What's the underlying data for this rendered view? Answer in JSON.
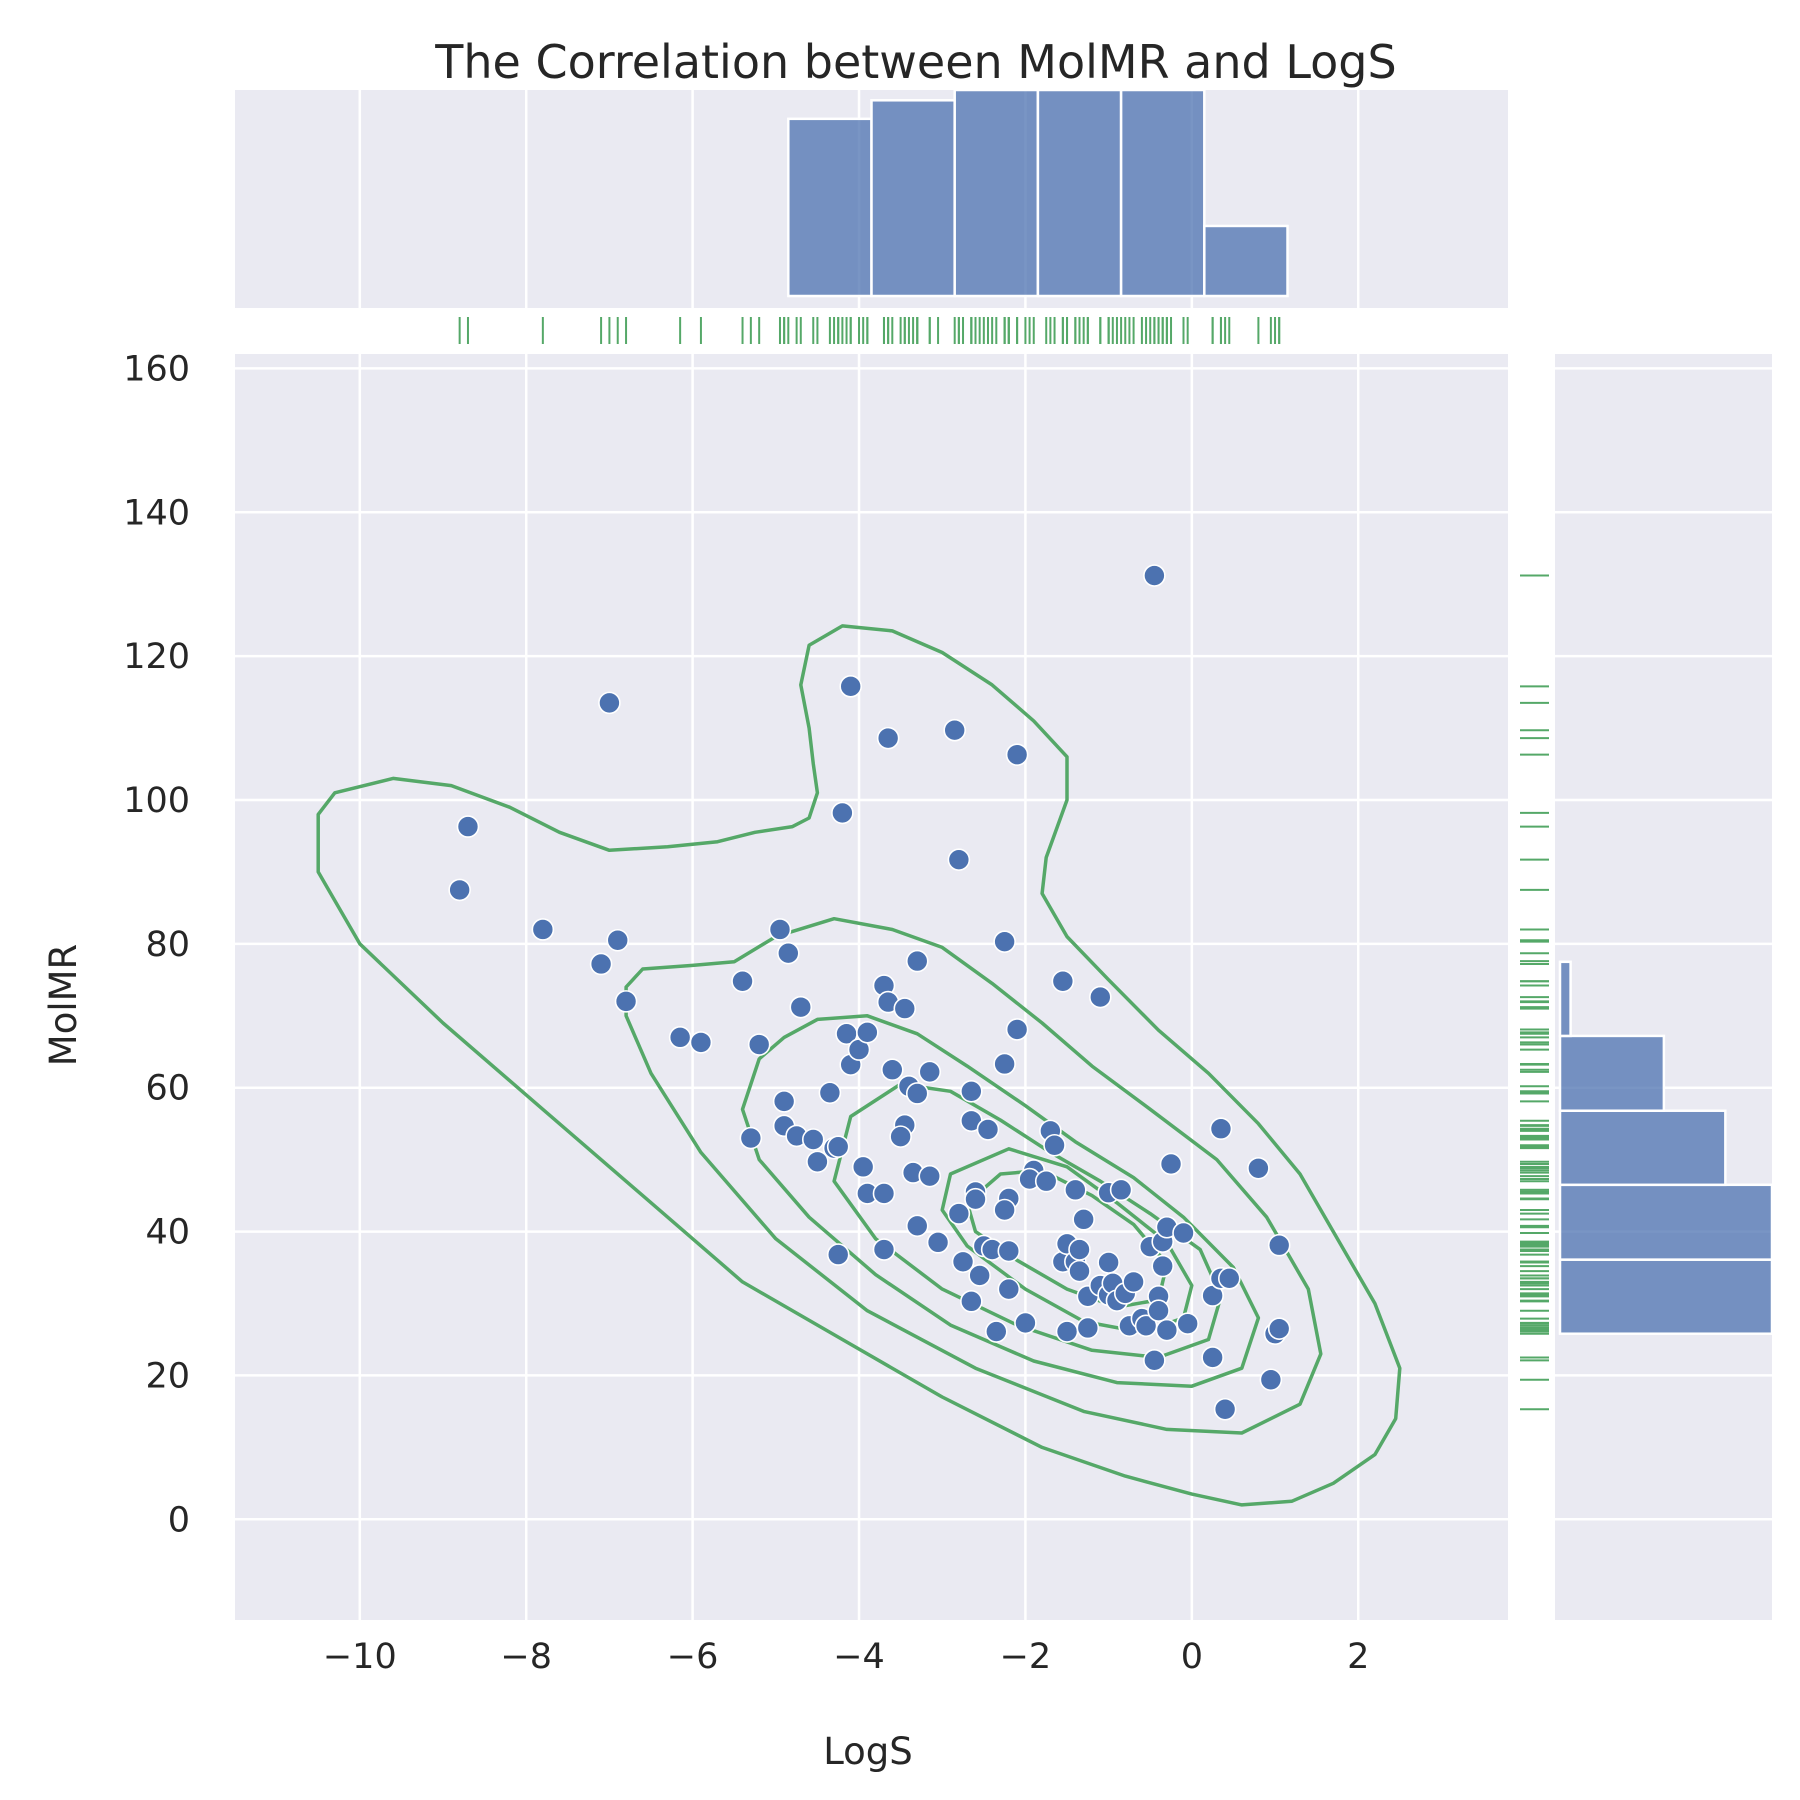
{
  "chart_data": {
    "type": "scatter",
    "title": "The Correlation between MolMR and LogS",
    "xlabel": "LogS",
    "ylabel": "MolMR",
    "xlim": [
      -11.5,
      3.8
    ],
    "ylim": [
      -14,
      162
    ],
    "xticks": [
      -10,
      -8,
      -6,
      -4,
      -2,
      0,
      2
    ],
    "xtick_labels": [
      "−10",
      "−8",
      "−6",
      "−4",
      "−2",
      "0",
      "2"
    ],
    "yticks": [
      0,
      20,
      40,
      60,
      80,
      100,
      120,
      140,
      160
    ],
    "ytick_labels": [
      "0",
      "20",
      "40",
      "60",
      "80",
      "100",
      "120",
      "140",
      "160"
    ],
    "grid": true,
    "colors": {
      "background": "#EAEAF2",
      "grid": "#FFFFFF",
      "points": "#4C72B0",
      "histogram": "#4C72B0",
      "kde": "#55A868",
      "rug": "#55A868",
      "text": "#262626"
    },
    "points": [
      [
        -8.8,
        87.5
      ],
      [
        -8.7,
        96.3
      ],
      [
        -7.8,
        82.0
      ],
      [
        -7.1,
        77.2
      ],
      [
        -6.9,
        80.5
      ],
      [
        -7.0,
        113.5
      ],
      [
        -6.8,
        72.0
      ],
      [
        -6.15,
        67.0
      ],
      [
        -5.9,
        66.3
      ],
      [
        -5.4,
        74.8
      ],
      [
        -5.2,
        66.0
      ],
      [
        -5.3,
        53.0
      ],
      [
        -4.95,
        82.0
      ],
      [
        -4.85,
        78.7
      ],
      [
        -4.9,
        58.1
      ],
      [
        -4.9,
        54.7
      ],
      [
        -4.7,
        71.2
      ],
      [
        -4.75,
        53.3
      ],
      [
        -4.55,
        52.8
      ],
      [
        -4.5,
        49.7
      ],
      [
        -4.35,
        59.3
      ],
      [
        -4.3,
        51.6
      ],
      [
        -4.25,
        51.8
      ],
      [
        -4.2,
        98.2
      ],
      [
        -4.15,
        67.5
      ],
      [
        -4.25,
        36.8
      ],
      [
        -4.1,
        115.8
      ],
      [
        -4.1,
        63.2
      ],
      [
        -4.0,
        65.3
      ],
      [
        -3.9,
        67.7
      ],
      [
        -3.95,
        49.0
      ],
      [
        -3.9,
        45.3
      ],
      [
        -3.7,
        74.2
      ],
      [
        -3.65,
        71.9
      ],
      [
        -3.65,
        108.6
      ],
      [
        -3.6,
        62.5
      ],
      [
        -3.7,
        45.3
      ],
      [
        -3.7,
        37.5
      ],
      [
        -3.45,
        71.0
      ],
      [
        -3.4,
        60.2
      ],
      [
        -3.45,
        54.8
      ],
      [
        -3.5,
        53.2
      ],
      [
        -3.35,
        48.2
      ],
      [
        -3.3,
        77.6
      ],
      [
        -3.3,
        59.2
      ],
      [
        -3.3,
        40.8
      ],
      [
        -3.15,
        62.2
      ],
      [
        -3.15,
        47.7
      ],
      [
        -3.05,
        38.5
      ],
      [
        -2.85,
        109.7
      ],
      [
        -2.8,
        91.7
      ],
      [
        -2.8,
        42.5
      ],
      [
        -2.75,
        35.8
      ],
      [
        -2.65,
        59.5
      ],
      [
        -2.65,
        55.4
      ],
      [
        -2.6,
        45.5
      ],
      [
        -2.6,
        44.5
      ],
      [
        -2.65,
        30.3
      ],
      [
        -2.55,
        33.9
      ],
      [
        -2.5,
        38.0
      ],
      [
        -2.45,
        54.2
      ],
      [
        -2.4,
        37.5
      ],
      [
        -2.35,
        26.1
      ],
      [
        -2.25,
        80.3
      ],
      [
        -2.25,
        63.3
      ],
      [
        -2.2,
        44.6
      ],
      [
        -2.25,
        43.0
      ],
      [
        -2.2,
        37.3
      ],
      [
        -2.2,
        32.0
      ],
      [
        -2.1,
        106.3
      ],
      [
        -2.1,
        68.1
      ],
      [
        -2.0,
        27.3
      ],
      [
        -1.9,
        48.5
      ],
      [
        -1.95,
        47.3
      ],
      [
        -1.75,
        47.0
      ],
      [
        -1.7,
        54.0
      ],
      [
        -1.65,
        52.0
      ],
      [
        -1.55,
        74.8
      ],
      [
        -1.55,
        35.8
      ],
      [
        -1.5,
        38.3
      ],
      [
        -1.5,
        26.1
      ],
      [
        -1.4,
        45.8
      ],
      [
        -1.4,
        35.8
      ],
      [
        -1.35,
        37.5
      ],
      [
        -1.35,
        34.5
      ],
      [
        -1.3,
        41.7
      ],
      [
        -1.25,
        31.0
      ],
      [
        -1.25,
        26.6
      ],
      [
        -1.1,
        72.6
      ],
      [
        -1.1,
        32.5
      ],
      [
        -1.0,
        45.4
      ],
      [
        -1.0,
        35.7
      ],
      [
        -1.0,
        31.2
      ],
      [
        -0.95,
        32.8
      ],
      [
        -0.9,
        30.4
      ],
      [
        -0.85,
        45.8
      ],
      [
        -0.8,
        31.4
      ],
      [
        -0.75,
        26.9
      ],
      [
        -0.7,
        33.0
      ],
      [
        -0.6,
        27.9
      ],
      [
        -0.55,
        26.9
      ],
      [
        -0.5,
        37.9
      ],
      [
        -0.45,
        22.1
      ],
      [
        -0.45,
        131.2
      ],
      [
        -0.4,
        31.0
      ],
      [
        -0.4,
        29.0
      ],
      [
        -0.35,
        38.6
      ],
      [
        -0.3,
        26.3
      ],
      [
        -0.35,
        35.2
      ],
      [
        -0.3,
        40.6
      ],
      [
        -0.25,
        49.4
      ],
      [
        -0.1,
        39.8
      ],
      [
        -0.05,
        27.2
      ],
      [
        0.25,
        31.1
      ],
      [
        0.25,
        22.5
      ],
      [
        0.35,
        54.3
      ],
      [
        0.35,
        33.5
      ],
      [
        0.4,
        15.3
      ],
      [
        0.45,
        33.5
      ],
      [
        0.8,
        48.8
      ],
      [
        0.95,
        19.4
      ],
      [
        1.0,
        25.8
      ],
      [
        1.05,
        26.5
      ],
      [
        1.05,
        38.1
      ]
    ],
    "x_hist": {
      "bins": [
        [
          -4.85,
          -3.85,
          0.86
        ],
        [
          -3.85,
          -2.85,
          0.95
        ],
        [
          -2.85,
          -1.85,
          1.0
        ],
        [
          -1.85,
          -0.85,
          1.0
        ],
        [
          -0.85,
          0.15,
          1.0
        ],
        [
          0.15,
          1.15,
          0.34
        ]
      ]
    },
    "y_hist": {
      "bins": [
        [
          25.8,
          36.1,
          1.0
        ],
        [
          36.1,
          46.5,
          1.0
        ],
        [
          46.5,
          56.8,
          0.78
        ],
        [
          56.8,
          67.2,
          0.49
        ],
        [
          67.2,
          77.5,
          0.05
        ]
      ]
    },
    "kde_contours": [
      [
        [
          -10.5,
          98
        ],
        [
          -10.3,
          101
        ],
        [
          -9.6,
          103
        ],
        [
          -8.9,
          102
        ],
        [
          -8.2,
          99
        ],
        [
          -7.6,
          95.5
        ],
        [
          -7.0,
          93
        ],
        [
          -6.3,
          93.5
        ],
        [
          -5.7,
          94.2
        ],
        [
          -5.25,
          95.5
        ],
        [
          -4.8,
          96.3
        ],
        [
          -4.6,
          97.5
        ],
        [
          -4.5,
          101
        ],
        [
          -4.55,
          105
        ],
        [
          -4.6,
          110
        ],
        [
          -4.7,
          116
        ],
        [
          -4.6,
          121.5
        ],
        [
          -4.2,
          124.2
        ],
        [
          -3.6,
          123.5
        ],
        [
          -3.0,
          120.5
        ],
        [
          -2.4,
          116
        ],
        [
          -1.9,
          111
        ],
        [
          -1.5,
          106
        ],
        [
          -1.5,
          100
        ],
        [
          -1.75,
          92
        ],
        [
          -1.8,
          87
        ],
        [
          -1.5,
          81
        ],
        [
          -1.0,
          75
        ],
        [
          -0.4,
          68
        ],
        [
          0.2,
          62
        ],
        [
          0.8,
          55
        ],
        [
          1.3,
          48
        ],
        [
          1.75,
          39
        ],
        [
          2.2,
          30
        ],
        [
          2.5,
          21
        ],
        [
          2.45,
          14
        ],
        [
          2.2,
          9
        ],
        [
          1.7,
          5
        ],
        [
          1.2,
          2.5
        ],
        [
          0.6,
          2
        ],
        [
          0.0,
          3.5
        ],
        [
          -0.8,
          6
        ],
        [
          -1.8,
          10
        ],
        [
          -3.0,
          17
        ],
        [
          -4.2,
          25
        ],
        [
          -5.4,
          33
        ],
        [
          -6.6,
          45
        ],
        [
          -7.8,
          57
        ],
        [
          -9.0,
          69
        ],
        [
          -10.0,
          80
        ],
        [
          -10.5,
          90
        ],
        [
          -10.5,
          98
        ]
      ],
      [
        [
          -6.8,
          74
        ],
        [
          -6.6,
          76.5
        ],
        [
          -6.0,
          77
        ],
        [
          -5.5,
          77.5
        ],
        [
          -5.0,
          81
        ],
        [
          -4.3,
          83.5
        ],
        [
          -3.6,
          82
        ],
        [
          -3.0,
          79.5
        ],
        [
          -2.4,
          74.5
        ],
        [
          -1.8,
          69
        ],
        [
          -1.2,
          63
        ],
        [
          -0.5,
          57
        ],
        [
          0.3,
          50
        ],
        [
          0.9,
          42
        ],
        [
          1.4,
          32
        ],
        [
          1.55,
          23
        ],
        [
          1.3,
          16
        ],
        [
          0.6,
          12
        ],
        [
          -0.3,
          12.5
        ],
        [
          -1.3,
          15
        ],
        [
          -2.6,
          21
        ],
        [
          -3.9,
          29
        ],
        [
          -5.0,
          39
        ],
        [
          -5.9,
          51
        ],
        [
          -6.5,
          62
        ],
        [
          -6.8,
          70
        ],
        [
          -6.8,
          74
        ]
      ],
      [
        [
          -5.2,
          64
        ],
        [
          -4.9,
          67
        ],
        [
          -4.5,
          69.5
        ],
        [
          -3.9,
          70
        ],
        [
          -3.3,
          67.5
        ],
        [
          -2.7,
          63
        ],
        [
          -2.0,
          57.5
        ],
        [
          -1.4,
          52.5
        ],
        [
          -0.7,
          47.5
        ],
        [
          -0.1,
          42
        ],
        [
          0.5,
          35
        ],
        [
          0.8,
          28
        ],
        [
          0.6,
          21
        ],
        [
          0.0,
          18.5
        ],
        [
          -0.9,
          19
        ],
        [
          -1.9,
          22
        ],
        [
          -2.9,
          27
        ],
        [
          -3.8,
          34
        ],
        [
          -4.6,
          42
        ],
        [
          -5.2,
          50
        ],
        [
          -5.4,
          57
        ],
        [
          -5.2,
          64
        ]
      ],
      [
        [
          -4.1,
          56
        ],
        [
          -3.5,
          60.5
        ],
        [
          -2.9,
          59.5
        ],
        [
          -2.3,
          55.5
        ],
        [
          -1.7,
          51
        ],
        [
          -1.1,
          47
        ],
        [
          -0.5,
          42.5
        ],
        [
          0.1,
          37.5
        ],
        [
          0.35,
          31
        ],
        [
          0.2,
          25
        ],
        [
          -0.4,
          22.5
        ],
        [
          -1.2,
          23.5
        ],
        [
          -2.1,
          27
        ],
        [
          -3.0,
          32
        ],
        [
          -3.8,
          39
        ],
        [
          -4.3,
          47
        ],
        [
          -4.1,
          56
        ]
      ],
      [
        [
          -2.9,
          48
        ],
        [
          -2.2,
          51.5
        ],
        [
          -1.5,
          49
        ],
        [
          -0.9,
          44
        ],
        [
          -0.3,
          38.5
        ],
        [
          0.0,
          32.5
        ],
        [
          -0.1,
          28
        ],
        [
          -0.6,
          26
        ],
        [
          -1.3,
          27.5
        ],
        [
          -2.0,
          32
        ],
        [
          -2.7,
          38
        ],
        [
          -3.0,
          43
        ],
        [
          -2.9,
          48
        ]
      ],
      [
        [
          -2.7,
          44
        ],
        [
          -2.3,
          48
        ],
        [
          -1.8,
          48.5
        ],
        [
          -1.2,
          45
        ],
        [
          -0.7,
          41
        ],
        [
          -0.3,
          35.5
        ],
        [
          -0.4,
          30.5
        ],
        [
          -0.9,
          29.5
        ],
        [
          -1.5,
          32
        ],
        [
          -2.1,
          36
        ],
        [
          -2.6,
          40
        ],
        [
          -2.7,
          44
        ]
      ]
    ]
  }
}
